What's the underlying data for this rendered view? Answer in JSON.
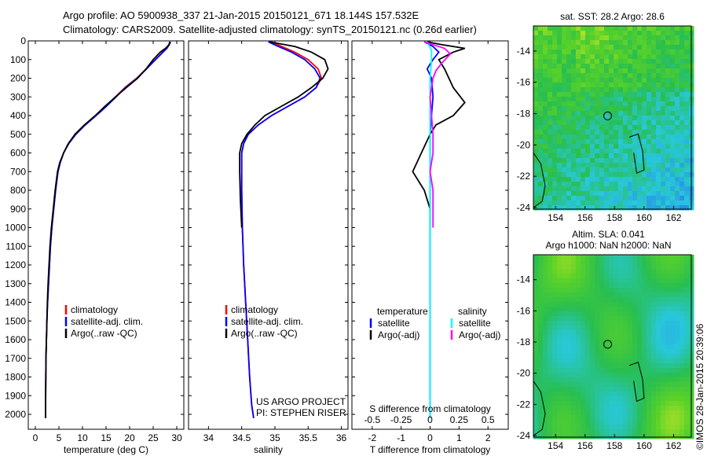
{
  "header": {
    "line1": "Argo profile: AO 5900938_337 21-Jan-2015 20150121_671 18.144S 157.532E",
    "line2": "Climatology: CARS2009. Satellite-adjusted climatology: synTS_20150121.nc (0.26d earlier)"
  },
  "colors": {
    "climatology": "#ff0000",
    "satellite": "#0000ff",
    "argo": "#000000",
    "salinity_sat": "#00ffff",
    "salinity_argo": "#ff00ff"
  },
  "chart_data": [
    {
      "type": "line",
      "panel": "temperature",
      "xlabel": "temperature (deg C)",
      "ylabel": "",
      "xlim": [
        -1.5,
        31.5
      ],
      "ylim": [
        2080,
        0
      ],
      "xticks": [
        0,
        5,
        10,
        15,
        20,
        25,
        30
      ],
      "yticks": [
        0,
        100,
        200,
        300,
        400,
        500,
        600,
        700,
        800,
        900,
        1000,
        1100,
        1200,
        1300,
        1400,
        1500,
        1600,
        1700,
        1800,
        1900,
        2000
      ],
      "legend": [
        "climatology",
        "satellite-adj. clim.",
        "Argo(..raw -QC)"
      ],
      "series": [
        {
          "name": "climatology",
          "x": [
            28.6,
            28.3,
            27.8,
            27.0,
            25.5,
            23.5,
            21.5,
            19.0,
            17.0,
            15.0,
            12.8,
            10.5,
            8.5,
            7.0,
            6.0,
            5.3,
            4.8,
            4.3,
            3.9,
            3.5,
            3.2,
            3.0,
            2.8,
            2.6,
            2.45,
            2.35,
            2.25,
            2.2,
            2.15
          ],
          "y": [
            5,
            20,
            40,
            60,
            100,
            150,
            200,
            250,
            300,
            350,
            400,
            450,
            500,
            550,
            600,
            650,
            700,
            800,
            900,
            1000,
            1100,
            1200,
            1300,
            1400,
            1500,
            1600,
            1700,
            1850,
            2020
          ]
        },
        {
          "name": "satellite-adj. clim.",
          "x": [
            28.7,
            28.4,
            27.9,
            27.1,
            25.5,
            23.6,
            21.6,
            19.1,
            17.1,
            15.1,
            12.9,
            10.6,
            8.6,
            7.1,
            6.0,
            5.3,
            4.8,
            4.3,
            3.9,
            3.5,
            3.2,
            3.0,
            2.8,
            2.6,
            2.45,
            2.35,
            2.25,
            2.2,
            2.15
          ],
          "y": [
            5,
            20,
            40,
            60,
            100,
            150,
            200,
            250,
            300,
            350,
            400,
            450,
            500,
            550,
            600,
            650,
            700,
            800,
            900,
            1000,
            1100,
            1200,
            1300,
            1400,
            1500,
            1600,
            1700,
            1850,
            2020
          ]
        },
        {
          "name": "Argo(..raw -QC)",
          "x": [
            28.5,
            28.4,
            27.6,
            26.5,
            25.0,
            23.5,
            21.7,
            19.3,
            17.0,
            14.8,
            12.7,
            10.4,
            8.4,
            7.0,
            6.0,
            5.2,
            4.7,
            4.2,
            3.8,
            3.4,
            3.1,
            2.9,
            2.7,
            2.55,
            2.45,
            2.35,
            2.25,
            2.2,
            2.15
          ],
          "y": [
            5,
            20,
            40,
            60,
            100,
            150,
            200,
            250,
            300,
            350,
            400,
            450,
            500,
            550,
            600,
            650,
            700,
            800,
            900,
            1000,
            1100,
            1200,
            1300,
            1400,
            1500,
            1600,
            1700,
            1850,
            2020
          ]
        }
      ]
    },
    {
      "type": "line",
      "panel": "salinity",
      "xlabel": "salinity",
      "ylabel": "",
      "xlim": [
        33.7,
        36.1
      ],
      "ylim": [
        2080,
        0
      ],
      "xticks": [
        34,
        34.5,
        35,
        35.5,
        36
      ],
      "xticklabels": [
        "34",
        "34.5",
        "35",
        "35.5",
        "36"
      ],
      "yticks": [
        0,
        100,
        200,
        300,
        400,
        500,
        600,
        700,
        800,
        900,
        1000,
        1100,
        1200,
        1300,
        1400,
        1500,
        1600,
        1700,
        1800,
        1900,
        2000
      ],
      "legend": [
        "climatology",
        "satellite-adj. clim.",
        "Argo(..raw -QC)"
      ],
      "annotation": [
        "US ARGO PROJECT",
        "PI: STEPHEN RISER"
      ],
      "series": [
        {
          "name": "climatology",
          "x": [
            34.95,
            35.1,
            35.3,
            35.5,
            35.65,
            35.7,
            35.62,
            35.45,
            35.2,
            34.95,
            34.75,
            34.6,
            34.53,
            34.5,
            34.5,
            34.5,
            34.51,
            34.53,
            34.56,
            34.59,
            34.62,
            34.65,
            34.68
          ],
          "y": [
            5,
            30,
            60,
            100,
            150,
            200,
            250,
            300,
            350,
            400,
            450,
            500,
            550,
            600,
            700,
            800,
            1000,
            1200,
            1400,
            1600,
            1800,
            1950,
            2020
          ]
        },
        {
          "name": "satellite-adj. clim.",
          "x": [
            34.9,
            35.05,
            35.25,
            35.45,
            35.6,
            35.68,
            35.62,
            35.45,
            35.2,
            34.95,
            34.75,
            34.6,
            34.53,
            34.5,
            34.5,
            34.5,
            34.51,
            34.53,
            34.56,
            34.59,
            34.62,
            34.65,
            34.68
          ],
          "y": [
            5,
            30,
            60,
            100,
            150,
            200,
            250,
            300,
            350,
            400,
            450,
            500,
            550,
            600,
            700,
            800,
            1000,
            1200,
            1400,
            1600,
            1800,
            1950,
            2020
          ]
        },
        {
          "name": "Argo(..raw -QC)",
          "x": [
            34.92,
            35.3,
            35.55,
            35.75,
            35.8,
            35.72,
            35.55,
            35.35,
            35.1,
            34.85,
            34.7,
            34.58,
            34.5,
            34.47,
            34.47,
            34.48,
            34.5
          ],
          "y": [
            5,
            30,
            60,
            100,
            150,
            200,
            250,
            300,
            350,
            400,
            450,
            500,
            550,
            600,
            700,
            850,
            1000
          ]
        }
      ]
    },
    {
      "type": "line",
      "panel": "difference",
      "xlabel": "T difference from climatology",
      "xlabel_top": "S difference from climatology",
      "xlim": [
        -2.7,
        2.7
      ],
      "ylim": [
        2080,
        0
      ],
      "xticks": [
        -2,
        -1,
        0,
        1,
        2
      ],
      "xticks_top": [
        -0.5,
        -0.25,
        0,
        0.25,
        0.5
      ],
      "xticklabels_top": [
        "-0.5",
        "-0.25",
        "0",
        "0.25",
        "0.5"
      ],
      "yticks": [
        0,
        100,
        200,
        300,
        400,
        500,
        600,
        700,
        800,
        900,
        1000,
        1100,
        1200,
        1300,
        1400,
        1500,
        1600,
        1700,
        1800,
        1900,
        2000
      ],
      "legend_titles": [
        "temperature",
        "salinity"
      ],
      "legend": [
        "satellite",
        "Argo(-adj)",
        "satellite",
        "Argo(-adj)"
      ],
      "series": [
        {
          "name": "satellite",
          "group": "temperature",
          "x": [
            -0.2,
            0.1,
            0.3,
            0.1,
            -0.1,
            0.05,
            0.1,
            0.05,
            0.0,
            0.0,
            0.0,
            0.0
          ],
          "y": [
            5,
            30,
            60,
            100,
            150,
            200,
            300,
            400,
            500,
            700,
            1000,
            2020
          ]
        },
        {
          "name": "Argo(-adj)",
          "group": "temperature",
          "x": [
            -0.1,
            0.4,
            1.2,
            0.8,
            0.3,
            0.5,
            0.8,
            1.2,
            0.8,
            0.2,
            0.0,
            -0.3,
            -0.6,
            -0.2,
            0.0,
            0.0
          ],
          "y": [
            5,
            20,
            40,
            60,
            100,
            150,
            250,
            330,
            400,
            450,
            500,
            600,
            700,
            800,
            900,
            1000
          ]
        },
        {
          "name": "satellite",
          "group": "salinity",
          "x": [
            -0.1,
            0.05,
            0.05,
            0.0,
            0.0,
            0.0,
            0.0
          ],
          "y": [
            5,
            50,
            100,
            200,
            400,
            1000,
            2020
          ]
        },
        {
          "name": "Argo(-adj)",
          "group": "salinity",
          "x": [
            -0.2,
            0.5,
            0.7,
            0.4,
            0.2,
            0.1,
            0.0,
            0.05,
            0.1,
            0.1,
            0.0,
            0.1,
            0.1
          ],
          "y": [
            5,
            40,
            70,
            120,
            160,
            200,
            300,
            400,
            500,
            600,
            700,
            800,
            1000
          ]
        }
      ]
    },
    {
      "type": "heatmap",
      "panel": "sst-map",
      "title": "sat. SST: 28.2  Argo: 28.6",
      "xlim": [
        152.5,
        163.2
      ],
      "ylim": [
        -24.1,
        -12.4
      ],
      "xticks": [
        154,
        156,
        158,
        160,
        162
      ],
      "yticks": [
        -14,
        -16,
        -18,
        -20,
        -22,
        -24
      ],
      "profile_location": {
        "lon": 157.532,
        "lat": -18.144
      }
    },
    {
      "type": "heatmap",
      "panel": "sla-map",
      "title_line1": "Altim. SLA: 0.041",
      "title_line2": "Argo h1000: NaN h2000: NaN",
      "xlim": [
        152.5,
        163.2
      ],
      "ylim": [
        -24.1,
        -12.4
      ],
      "xticks": [
        154,
        156,
        158,
        160,
        162
      ],
      "yticks": [
        -14,
        -16,
        -18,
        -20,
        -22,
        -24
      ],
      "profile_location": {
        "lon": 157.532,
        "lat": -18.144
      }
    }
  ],
  "side_label": "©IMOS 28-Jan-2015 20:39:06"
}
